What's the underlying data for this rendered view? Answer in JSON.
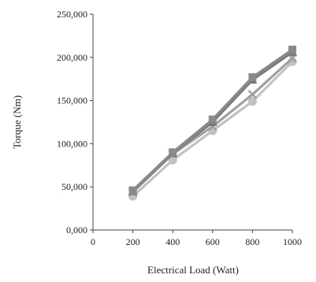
{
  "chart_data": {
    "type": "line",
    "title": "",
    "xlabel": "Electrical Load (Watt)",
    "ylabel": "Torque (Nm)",
    "xlim": [
      0,
      1000
    ],
    "ylim": [
      0,
      250000
    ],
    "x_ticks": [
      "0",
      "200",
      "400",
      "600",
      "800",
      "1000"
    ],
    "y_ticks": [
      "0,000",
      "50,000",
      "100,000",
      "150,000",
      "200,000",
      "250,000"
    ],
    "grid": false,
    "legend": "none",
    "x": [
      200,
      400,
      600,
      800,
      1000
    ],
    "series": [
      {
        "values": [
          46000,
          90000,
          128000,
          177000,
          209000
        ],
        "color": "#8a8a8a",
        "marker": "square"
      },
      {
        "values": [
          45000,
          89000,
          125000,
          174000,
          206000
        ],
        "color": "#7a7a7a",
        "marker": "triangle"
      },
      {
        "values": [
          44000,
          88000,
          120000,
          157000,
          199000
        ],
        "color": "#a0a0a0",
        "marker": "x"
      },
      {
        "values": [
          39000,
          81000,
          115000,
          149000,
          195000
        ],
        "color": "#c2c2c2",
        "marker": "circle"
      }
    ]
  }
}
